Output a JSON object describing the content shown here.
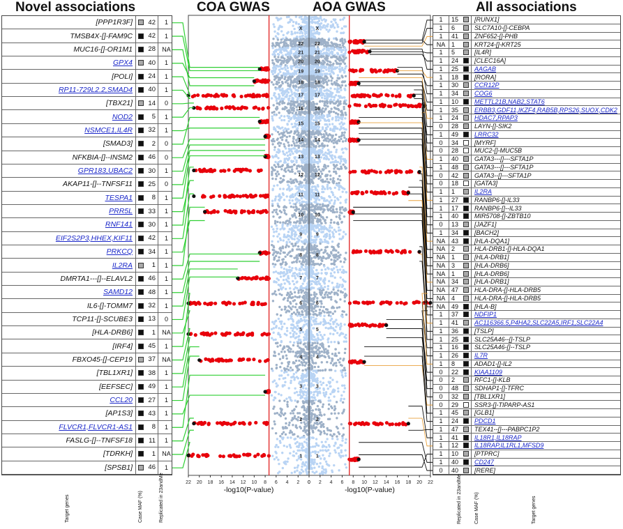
{
  "titles": {
    "novel": "Novel associations",
    "coa": "COA GWAS",
    "aoa": "AOA GWAS",
    "all": "All associations"
  },
  "footer": {
    "target_genes": "Target genes",
    "case_maf": "Case MAF (%)",
    "replicated": "Replicated in 23andMe"
  },
  "colors": {
    "significant": "#e8000b",
    "chrom_light": "#b9d4f4",
    "chrom_dark": "#9eb1c8",
    "novel_connector": "#2fcf33",
    "all_connector_black": "#111111",
    "all_connector_orange": "#e9a13c",
    "threshold": "#e02020",
    "blue_gene": "#1a27c9"
  },
  "novel": [
    {
      "gene": "[PPP1R3F]",
      "maf": "42",
      "sq": "grey",
      "rep": "1",
      "blue": false
    },
    {
      "gene": "TMSB4X-[]-FAM9C",
      "maf": "42",
      "sq": "black",
      "rep": "1",
      "blue": false
    },
    {
      "gene": "MUC16-[]-OR1M1",
      "maf": "28",
      "sq": "black",
      "rep": "NA",
      "blue": false
    },
    {
      "gene": "GPX4",
      "maf": "40",
      "sq": "grey",
      "rep": "1",
      "blue": true
    },
    {
      "gene": "[POLI]",
      "maf": "24",
      "sq": "black",
      "rep": "1",
      "blue": false
    },
    {
      "gene": "RP11-729L2.2,SMAD4",
      "maf": "40",
      "sq": "black",
      "rep": "1",
      "blue": true
    },
    {
      "gene": "[TBX21]",
      "maf": "14",
      "sq": "grey",
      "rep": "0",
      "blue": false
    },
    {
      "gene": "NOD2",
      "maf": "5",
      "sq": "black",
      "rep": "1",
      "blue": true
    },
    {
      "gene": "NSMCE1,IL4R",
      "maf": "32",
      "sq": "black",
      "rep": "1",
      "blue": true
    },
    {
      "gene": "[SMAD3]",
      "maf": "2",
      "sq": "black",
      "rep": "0",
      "blue": false
    },
    {
      "gene": "NFKBIA-[]--INSM2",
      "maf": "46",
      "sq": "black",
      "rep": "0",
      "blue": false
    },
    {
      "gene": "GPR183,UBAC2",
      "maf": "30",
      "sq": "black",
      "rep": "1",
      "blue": true
    },
    {
      "gene": "AKAP11-[]--TNFSF11",
      "maf": "25",
      "sq": "black",
      "rep": "0",
      "blue": false
    },
    {
      "gene": "TESPA1",
      "maf": "8",
      "sq": "black",
      "rep": "1",
      "blue": true
    },
    {
      "gene": "PRR5L",
      "maf": "33",
      "sq": "black",
      "rep": "1",
      "blue": true
    },
    {
      "gene": "RNF141",
      "maf": "30",
      "sq": "black",
      "rep": "1",
      "blue": true
    },
    {
      "gene": "EIF2S2P3,HHEX,KIF11",
      "maf": "42",
      "sq": "black",
      "rep": "1",
      "blue": true
    },
    {
      "gene": "PRKCQ",
      "maf": "34",
      "sq": "black",
      "rep": "1",
      "blue": true
    },
    {
      "gene": "IL2RA",
      "maf": "1",
      "sq": "grey",
      "rep": "1",
      "blue": true
    },
    {
      "gene": "DMRTA1---[]--ELAVL2",
      "maf": "46",
      "sq": "black",
      "rep": "1",
      "blue": false
    },
    {
      "gene": "SAMD12",
      "maf": "48",
      "sq": "black",
      "rep": "1",
      "blue": true
    },
    {
      "gene": "IL6-[]-TOMM7",
      "maf": "32",
      "sq": "black",
      "rep": "1",
      "blue": false
    },
    {
      "gene": "TCP11-[]-SCUBE3",
      "maf": "13",
      "sq": "black",
      "rep": "0",
      "blue": false
    },
    {
      "gene": "[HLA-DRB6]",
      "maf": "1",
      "sq": "black",
      "rep": "NA",
      "blue": false
    },
    {
      "gene": "[IRF4]",
      "maf": "45",
      "sq": "black",
      "rep": "1",
      "blue": false
    },
    {
      "gene": "FBXO45-[]-CEP19",
      "maf": "37",
      "sq": "grey",
      "rep": "NA",
      "blue": false
    },
    {
      "gene": "[TBL1XR1]",
      "maf": "38",
      "sq": "black",
      "rep": "1",
      "blue": false
    },
    {
      "gene": "[EEFSEC]",
      "maf": "49",
      "sq": "black",
      "rep": "1",
      "blue": false
    },
    {
      "gene": "CCL20",
      "maf": "27",
      "sq": "black",
      "rep": "1",
      "blue": true
    },
    {
      "gene": "[AP1S3]",
      "maf": "43",
      "sq": "black",
      "rep": "1",
      "blue": false
    },
    {
      "gene": "FLVCR1,FLVCR1-AS1",
      "maf": "8",
      "sq": "black",
      "rep": "1",
      "blue": true
    },
    {
      "gene": "FASLG-[]--TNFSF18",
      "maf": "11",
      "sq": "black",
      "rep": "1",
      "blue": false
    },
    {
      "gene": "[TDRKH]",
      "maf": "1",
      "sq": "black",
      "rep": "NA",
      "blue": false
    },
    {
      "gene": "[SPSB1]",
      "maf": "46",
      "sq": "grey",
      "rep": "1",
      "blue": false
    }
  ],
  "all": [
    {
      "rep": "1",
      "maf": "15",
      "sq": "grey",
      "gene": "[RUNX1]",
      "blue": false
    },
    {
      "rep": "1",
      "maf": "6",
      "sq": "grey",
      "gene": "SLC7A10-[]-CEBPA",
      "blue": false
    },
    {
      "rep": "1",
      "maf": "41",
      "sq": "grey",
      "gene": "ZNF652-[]-PHB",
      "blue": false
    },
    {
      "rep": "NA",
      "maf": "1",
      "sq": "grey",
      "gene": "KRT24-[]-KRT25",
      "blue": false
    },
    {
      "rep": "1",
      "maf": "5",
      "sq": "grey",
      "gene": "[IL4R]",
      "blue": false
    },
    {
      "rep": "1",
      "maf": "24",
      "sq": "black",
      "gene": "[CLEC16A]",
      "blue": false
    },
    {
      "rep": "1",
      "maf": "25",
      "sq": "black",
      "gene": "AAGAB",
      "blue": true
    },
    {
      "rep": "1",
      "maf": "18",
      "sq": "black",
      "gene": "[RORA]",
      "blue": false
    },
    {
      "rep": "1",
      "maf": "30",
      "sq": "grey",
      "gene": "CCR12P",
      "blue": true
    },
    {
      "rep": "1",
      "maf": "34",
      "sq": "grey",
      "gene": "COG6",
      "blue": true
    },
    {
      "rep": "1",
      "maf": "10",
      "sq": "black",
      "gene": "METTL21B,NAB2,STAT6",
      "blue": true
    },
    {
      "rep": "1",
      "maf": "35",
      "sq": "grey",
      "gene": "ERBB3,GDF11,IKZF4,RAB5B,RPS26,SUOX,CDK2",
      "blue": true
    },
    {
      "rep": "1",
      "maf": "24",
      "sq": "grey",
      "gene": "HDAC7,RPAP3",
      "blue": true
    },
    {
      "rep": "0",
      "maf": "28",
      "sq": "grey",
      "gene": "LAYN-[]-SIK2",
      "blue": false
    },
    {
      "rep": "1",
      "maf": "49",
      "sq": "black",
      "gene": "LRRC32",
      "blue": true
    },
    {
      "rep": "0",
      "maf": "34",
      "sq": "white",
      "gene": "[MYRF]",
      "blue": false
    },
    {
      "rep": "0",
      "maf": "28",
      "sq": "white",
      "gene": "MUC2-[]-MUC5B",
      "blue": false
    },
    {
      "rep": "1",
      "maf": "40",
      "sq": "grey",
      "gene": "GATA3---[]---SFTA1P",
      "blue": false
    },
    {
      "rep": "1",
      "maf": "48",
      "sq": "grey",
      "gene": "GATA3---[]---SFTA1P",
      "blue": false
    },
    {
      "rep": "0",
      "maf": "42",
      "sq": "grey",
      "gene": "GATA3--[]---SFTA1P",
      "blue": false
    },
    {
      "rep": "0",
      "maf": "18",
      "sq": "white",
      "gene": "[GATA3]",
      "blue": false
    },
    {
      "rep": "1",
      "maf": "1",
      "sq": "grey",
      "gene": "IL2RA",
      "blue": true
    },
    {
      "rep": "1",
      "maf": "27",
      "sq": "black",
      "gene": "RANBP6-[]-IL33",
      "blue": false
    },
    {
      "rep": "1",
      "maf": "17",
      "sq": "black",
      "gene": "RANBP6-[]--IL33",
      "blue": false
    },
    {
      "rep": "1",
      "maf": "40",
      "sq": "black",
      "gene": "MIR5708-[]-ZBTB10",
      "blue": false
    },
    {
      "rep": "0",
      "maf": "13",
      "sq": "grey",
      "gene": "[JAZF1]",
      "blue": false
    },
    {
      "rep": "1",
      "maf": "34",
      "sq": "black",
      "gene": "[BACH2]",
      "blue": false
    },
    {
      "rep": "NA",
      "maf": "43",
      "sq": "black",
      "gene": "[HLA-DQA1]",
      "blue": false
    },
    {
      "rep": "NA",
      "maf": "2",
      "sq": "grey",
      "gene": "HLA-DRB1-[]-HLA-DQA1",
      "blue": false
    },
    {
      "rep": "NA",
      "maf": "1",
      "sq": "grey",
      "gene": "[HLA-DRB1]",
      "blue": false
    },
    {
      "rep": "NA",
      "maf": "3",
      "sq": "grey",
      "gene": "[HLA-DRB6]",
      "blue": false
    },
    {
      "rep": "NA",
      "maf": "1",
      "sq": "grey",
      "gene": "[HLA-DRB6]",
      "blue": false
    },
    {
      "rep": "NA",
      "maf": "34",
      "sq": "grey",
      "gene": "[HLA-DRB1]",
      "blue": false
    },
    {
      "rep": "NA",
      "maf": "47",
      "sq": "grey",
      "gene": "HLA-DRA-[]-HLA-DRB5",
      "blue": false
    },
    {
      "rep": "NA",
      "maf": "4",
      "sq": "grey",
      "gene": "HLA-DRA-[]-HLA-DRB5",
      "blue": false
    },
    {
      "rep": "NA",
      "maf": "49",
      "sq": "black",
      "gene": "[HLA-B]",
      "blue": false
    },
    {
      "rep": "1",
      "maf": "37",
      "sq": "black",
      "gene": "NDFIP1",
      "blue": true
    },
    {
      "rep": "1",
      "maf": "41",
      "sq": "grey",
      "gene": "AC116366.5,P4HA2,SLC22A5,IRF1,SLC22A4",
      "blue": true
    },
    {
      "rep": "1",
      "maf": "36",
      "sq": "black",
      "gene": "[TSLP]",
      "blue": false
    },
    {
      "rep": "1",
      "maf": "25",
      "sq": "black",
      "gene": "SLC25A46--[]-TSLP",
      "blue": false
    },
    {
      "rep": "1",
      "maf": "16",
      "sq": "black",
      "gene": "SLC25A46-[]--TSLP",
      "blue": false
    },
    {
      "rep": "1",
      "maf": "26",
      "sq": "black",
      "gene": "IL7R",
      "blue": true
    },
    {
      "rep": "1",
      "maf": "8",
      "sq": "black",
      "gene": "ADAD1-[]-IL2",
      "blue": false
    },
    {
      "rep": "0",
      "maf": "22",
      "sq": "black",
      "gene": "KIAA1109",
      "blue": true
    },
    {
      "rep": "0",
      "maf": "2",
      "sq": "grey",
      "gene": "RFC1-[]-KLB",
      "blue": false
    },
    {
      "rep": "0",
      "maf": "48",
      "sq": "grey",
      "gene": "SDHAP1-[]-TFRC",
      "blue": false
    },
    {
      "rep": "0",
      "maf": "32",
      "sq": "grey",
      "gene": "[TBL1XR1]",
      "blue": false
    },
    {
      "rep": "0",
      "maf": "29",
      "sq": "white",
      "gene": "SSR3-[]-TIPARP-AS1",
      "blue": false
    },
    {
      "rep": "1",
      "maf": "45",
      "sq": "grey",
      "gene": "[GLB1]",
      "blue": false
    },
    {
      "rep": "1",
      "maf": "24",
      "sq": "black",
      "gene": "PDCD1",
      "blue": true
    },
    {
      "rep": "1",
      "maf": "47",
      "sq": "grey",
      "gene": "TEX41--[]---PABPC1P2",
      "blue": false
    },
    {
      "rep": "1",
      "maf": "41",
      "sq": "black",
      "gene": "IL18R1,IL18RAP",
      "blue": true
    },
    {
      "rep": "1",
      "maf": "12",
      "sq": "black",
      "gene": "IL18RAP,IL1RL1,MFSD9",
      "blue": true
    },
    {
      "rep": "1",
      "maf": "10",
      "sq": "grey",
      "gene": "[PTPRC]",
      "blue": false
    },
    {
      "rep": "1",
      "maf": "40",
      "sq": "black",
      "gene": "CD247",
      "blue": true
    },
    {
      "rep": "0",
      "maf": "40",
      "sq": "grey",
      "gene": "[RERE]",
      "blue": false
    }
  ],
  "chart_data": {
    "type": "scatter",
    "description_panels": [
      "COA GWAS",
      "AOA GWAS"
    ],
    "xlabel": "-log10(P-value)",
    "coa_xticks": [
      "22",
      "20",
      "18",
      "16",
      "14",
      "12",
      "10",
      "8",
      "6",
      "4",
      "2",
      "0"
    ],
    "aoa_xticks": [
      "0",
      "2",
      "4",
      "6",
      "8",
      "10",
      "12",
      "14",
      "16",
      "18",
      "20",
      "22"
    ],
    "xlim": [
      0,
      22
    ],
    "significance_threshold": 7.3,
    "chromosomes": [
      "X",
      "22",
      "21",
      "20",
      "19",
      "18",
      "17",
      "16",
      "15",
      "14",
      "13",
      "12",
      "11",
      "10",
      "9",
      "8",
      "7",
      "6",
      "5",
      "4",
      "3",
      "2",
      "1"
    ],
    "coa_peaks": [
      {
        "chr": "22",
        "max": 0
      },
      {
        "chr": "21",
        "max": 0
      },
      {
        "chr": "19",
        "max": 9
      },
      {
        "chr": "18",
        "max": 10
      },
      {
        "chr": "17",
        "max": 22
      },
      {
        "chr": "16",
        "max": 21
      },
      {
        "chr": "15",
        "max": 9
      },
      {
        "chr": "14",
        "max": 8
      },
      {
        "chr": "13",
        "max": 8
      },
      {
        "chr": "12",
        "max": 21
      },
      {
        "chr": "11",
        "max": 21
      },
      {
        "chr": "10",
        "max": 19
      },
      {
        "chr": "9",
        "max": 0
      },
      {
        "chr": "8",
        "max": 9
      },
      {
        "chr": "7",
        "max": 13
      },
      {
        "chr": "6",
        "max": 22
      },
      {
        "chr": "5",
        "max": 22
      },
      {
        "chr": "4",
        "max": 20
      },
      {
        "chr": "3",
        "max": 8
      },
      {
        "chr": "2",
        "max": 21
      },
      {
        "chr": "1",
        "max": 22
      }
    ],
    "aoa_peaks": [
      {
        "chr": "22",
        "max": 10
      },
      {
        "chr": "21",
        "max": 11
      },
      {
        "chr": "19",
        "max": 16
      },
      {
        "chr": "18",
        "max": 9
      },
      {
        "chr": "17",
        "max": 19
      },
      {
        "chr": "16",
        "max": 21
      },
      {
        "chr": "15",
        "max": 9
      },
      {
        "chr": "14",
        "max": 9
      },
      {
        "chr": "12",
        "max": 20
      },
      {
        "chr": "11",
        "max": 18
      },
      {
        "chr": "10",
        "max": 8
      },
      {
        "chr": "8",
        "max": 20
      },
      {
        "chr": "6",
        "max": 22
      },
      {
        "chr": "5",
        "max": 14
      },
      {
        "chr": "4",
        "max": 10
      },
      {
        "chr": "2",
        "max": 18
      },
      {
        "chr": "1",
        "max": 9
      }
    ]
  }
}
